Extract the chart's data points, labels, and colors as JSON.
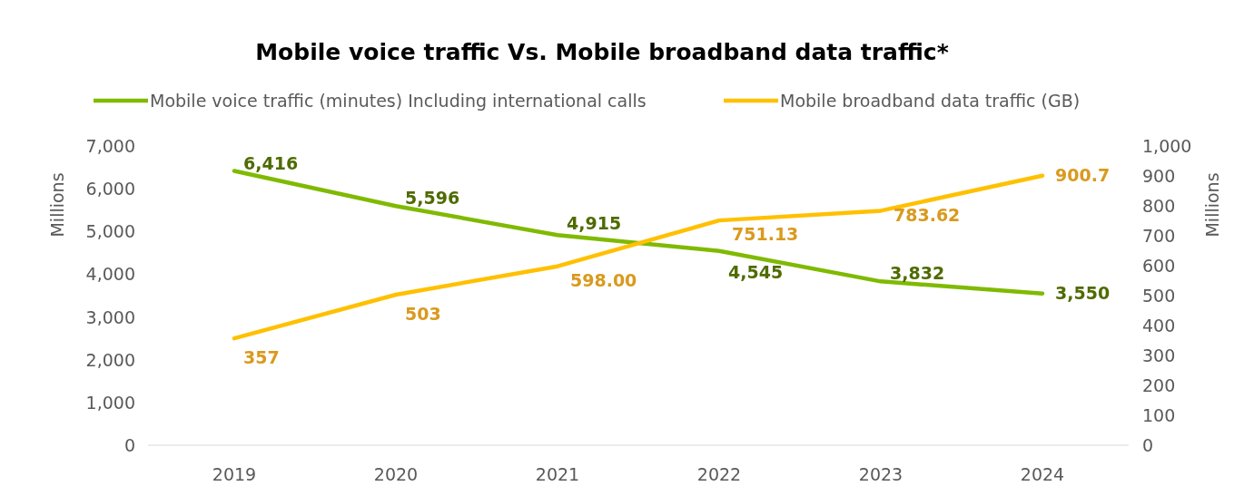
{
  "chart_data": {
    "type": "line",
    "title": "Mobile voice traffic Vs. Mobile broadband data traffic*",
    "ylabel": "Millions",
    "y2label": "Millions",
    "categories": [
      "2019",
      "2020",
      "2021",
      "2022",
      "2023",
      "2024"
    ],
    "series": [
      {
        "name": "Mobile voice traffic (minutes) Including international calls",
        "color": "#7fba00",
        "values": [
          6416,
          5596,
          4915,
          4545,
          3832,
          3550
        ],
        "value_labels": [
          "6,416",
          "5,596",
          "4,915",
          "4,545",
          "3,832",
          "3,550"
        ]
      },
      {
        "name": "Mobile broadband data traffic (GB)",
        "color": "#ffc000",
        "axis": "y2",
        "values": [
          357,
          503,
          598,
          751.13,
          783.62,
          900.7
        ],
        "value_labels": [
          "357",
          "503",
          "598.00",
          "751.13",
          "783.62",
          "900.7"
        ]
      }
    ],
    "ylim": [
      0,
      7000
    ],
    "yticks": [
      {
        "value": 0,
        "label": "0"
      },
      {
        "value": 1000,
        "label": "1,000"
      },
      {
        "value": 2000,
        "label": "2,000"
      },
      {
        "value": 3000,
        "label": "3,000"
      },
      {
        "value": 4000,
        "label": "4,000"
      },
      {
        "value": 5000,
        "label": "5,000"
      },
      {
        "value": 6000,
        "label": "6,000"
      },
      {
        "value": 7000,
        "label": "7,000"
      }
    ],
    "y2lim": [
      0,
      1000
    ],
    "y2ticks": [
      0,
      100,
      200,
      300,
      400,
      500,
      600,
      700,
      800,
      900,
      {
        "value": 1000,
        "label": "1,000"
      }
    ],
    "grid": false,
    "legend": "top",
    "marker": "none",
    "line_style": "solid"
  }
}
